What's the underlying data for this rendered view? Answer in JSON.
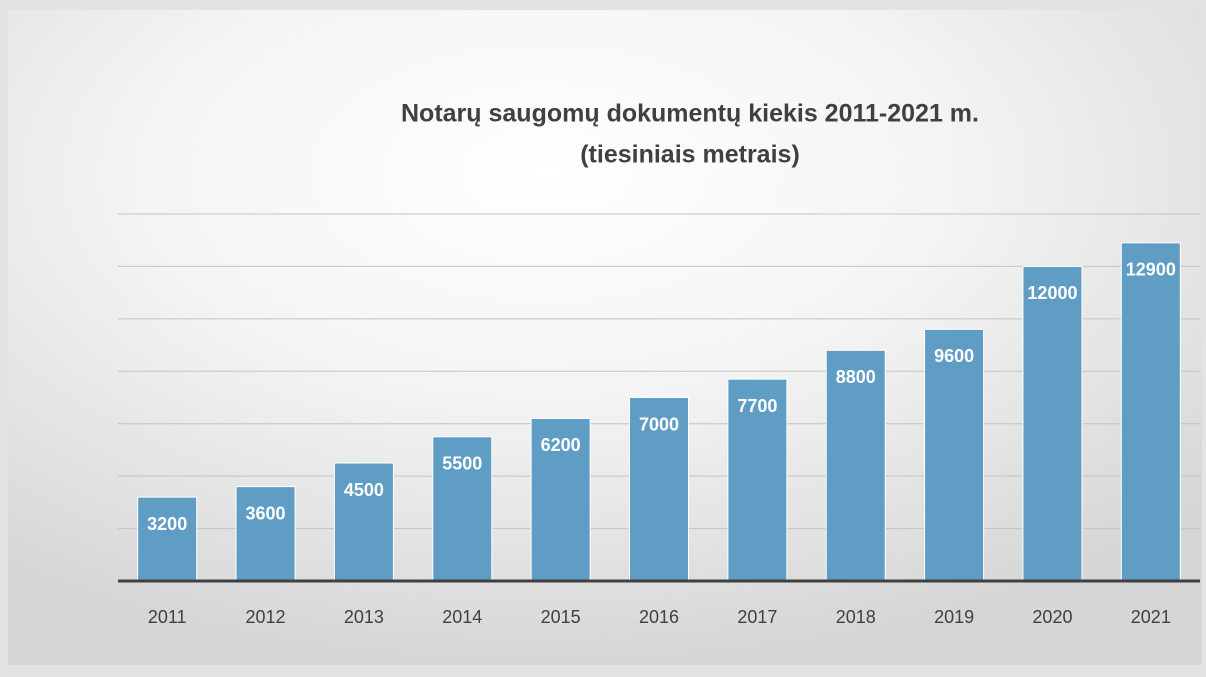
{
  "chart_data": {
    "type": "bar",
    "title": "Notarų saugomų dokumentų kiekis 2011-2021 m.",
    "subtitle": "(tiesiniais metrais)",
    "categories": [
      "2011",
      "2012",
      "2013",
      "2014",
      "2015",
      "2016",
      "2017",
      "2018",
      "2019",
      "2020",
      "2021"
    ],
    "values": [
      3200,
      3600,
      4500,
      5500,
      6200,
      7000,
      7700,
      8800,
      9600,
      12000,
      12900
    ],
    "color": "#5f9dc5",
    "ylim": [
      0,
      14000
    ],
    "yticks": [
      0,
      2000,
      4000,
      6000,
      8000,
      10000,
      12000,
      14000
    ],
    "grid": true
  }
}
